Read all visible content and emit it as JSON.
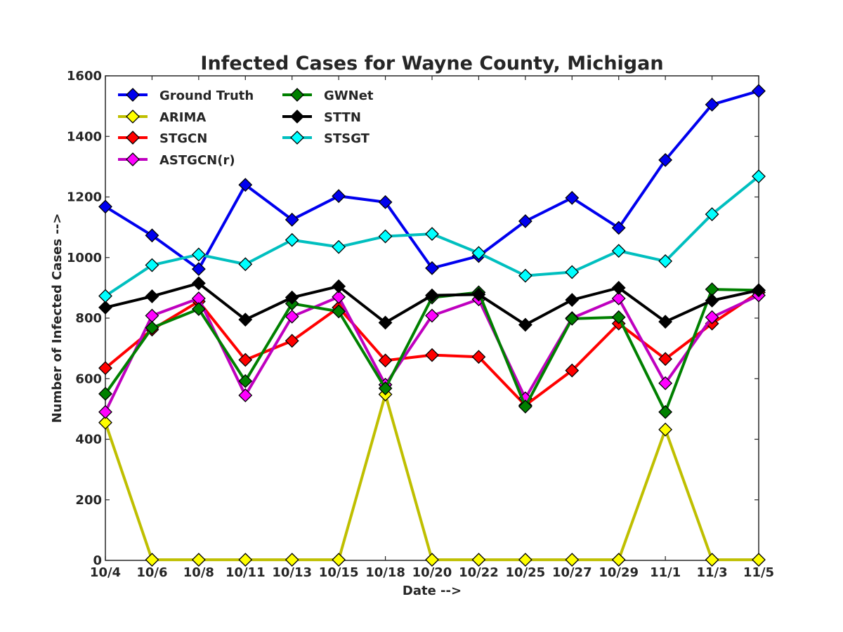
{
  "chart_data": {
    "type": "line",
    "title": "Infected Cases for Wayne County, Michigan",
    "xlabel": "Date -->",
    "ylabel": "Number of Infected Cases -->",
    "categories": [
      "10/4",
      "10/6",
      "10/8",
      "10/11",
      "10/13",
      "10/15",
      "10/18",
      "10/20",
      "10/22",
      "10/25",
      "10/27",
      "10/29",
      "11/1",
      "11/3",
      "11/5"
    ],
    "ylim": [
      0,
      1600
    ],
    "yticks": [
      0,
      200,
      400,
      600,
      800,
      1000,
      1200,
      1400,
      1600
    ],
    "grid": false,
    "legend_position": "top-left",
    "series": [
      {
        "name": "Ground Truth",
        "color": "#0000ee",
        "values": [
          1168,
          1073,
          962,
          1240,
          1125,
          1203,
          1183,
          965,
          1005,
          1120,
          1197,
          1098,
          1322,
          1505,
          1550
        ]
      },
      {
        "name": "ARIMA",
        "color": "#bfbf00",
        "marker_color": "#ffff00",
        "values": [
          455,
          2,
          2,
          2,
          2,
          2,
          548,
          2,
          2,
          2,
          2,
          2,
          432,
          2,
          2
        ]
      },
      {
        "name": "STGCN",
        "color": "#ff0000",
        "values": [
          635,
          762,
          855,
          662,
          725,
          835,
          660,
          678,
          672,
          512,
          627,
          782,
          665,
          782,
          885
        ]
      },
      {
        "name": "ASTGCN(r)",
        "color": "#bf00bf",
        "marker_color": "#ff00ff",
        "values": [
          490,
          808,
          865,
          545,
          805,
          870,
          580,
          808,
          862,
          535,
          800,
          865,
          585,
          803,
          875
        ]
      },
      {
        "name": "GWNet",
        "color": "#008000",
        "values": [
          550,
          768,
          830,
          592,
          848,
          822,
          568,
          868,
          885,
          508,
          798,
          803,
          490,
          895,
          892
        ]
      },
      {
        "name": "STTN",
        "color": "#000000",
        "values": [
          835,
          872,
          915,
          795,
          868,
          905,
          785,
          875,
          878,
          778,
          860,
          900,
          788,
          858,
          892
        ]
      },
      {
        "name": "STSGT",
        "color": "#00bfbf",
        "marker_color": "#00ffff",
        "values": [
          873,
          975,
          1010,
          978,
          1058,
          1035,
          1070,
          1078,
          1015,
          940,
          952,
          1022,
          988,
          1143,
          1268
        ]
      }
    ]
  }
}
